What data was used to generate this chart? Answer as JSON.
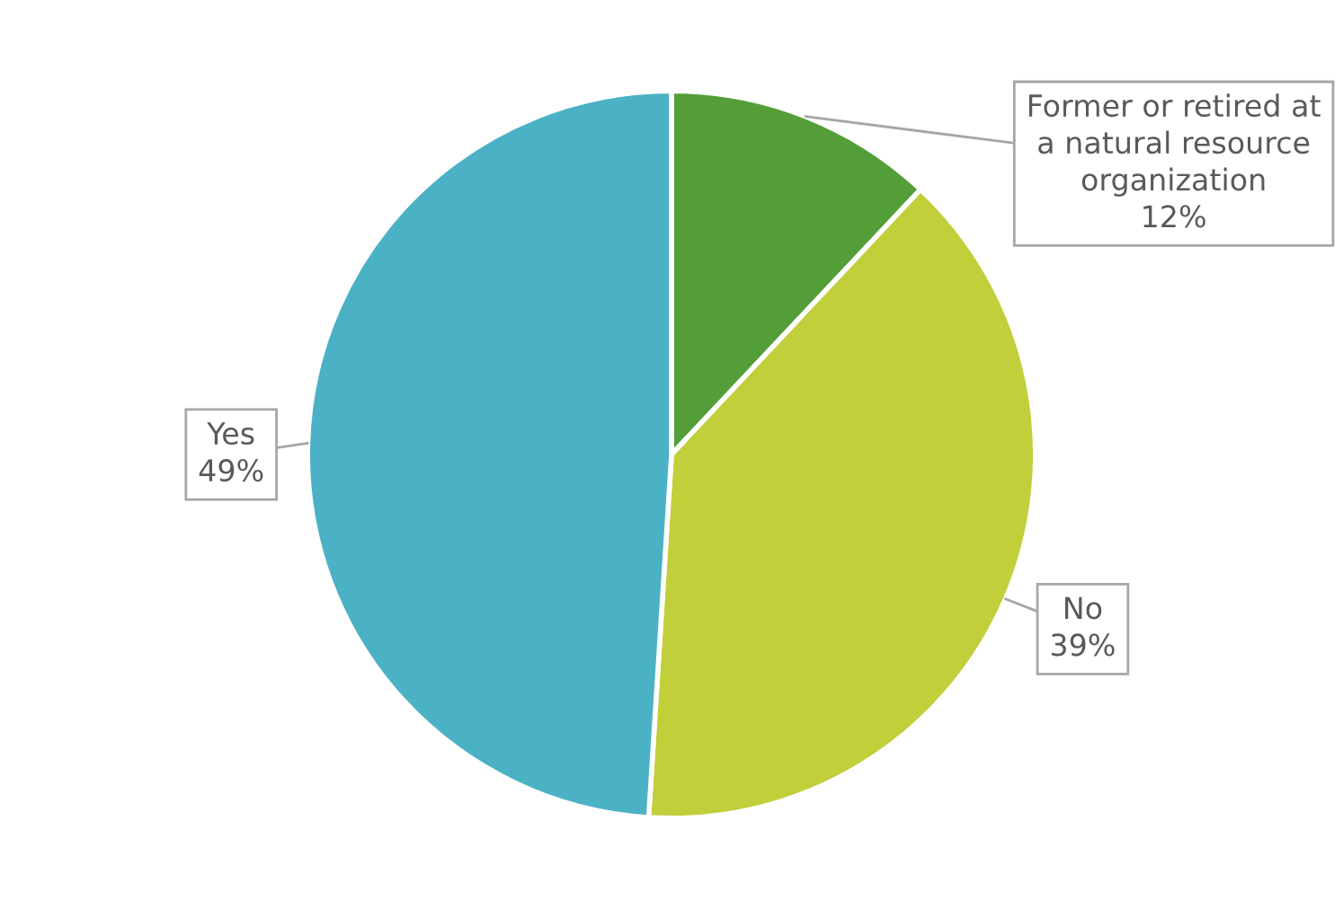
{
  "chart_data": {
    "type": "pie",
    "categories": [
      "Former or retired at\na natural resource\norganization",
      "No",
      "Yes"
    ],
    "values": [
      12,
      39,
      49
    ],
    "colors": [
      "#549e3a",
      "#c0cf3a",
      "#4bb2c5"
    ],
    "value_labels": [
      "12%",
      "39%",
      "49%"
    ]
  }
}
